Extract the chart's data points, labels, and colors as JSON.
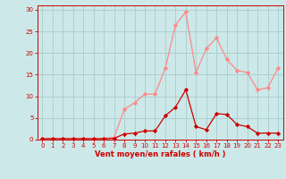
{
  "x": [
    0,
    1,
    2,
    3,
    4,
    5,
    6,
    7,
    8,
    9,
    10,
    11,
    12,
    13,
    14,
    15,
    16,
    17,
    18,
    19,
    20,
    21,
    22,
    23
  ],
  "y_rafales": [
    0.3,
    0.3,
    0.3,
    0.3,
    0.3,
    0.3,
    0.3,
    0.5,
    7.0,
    8.5,
    10.5,
    10.5,
    16.5,
    26.5,
    29.5,
    15.5,
    21.0,
    23.5,
    18.5,
    16.0,
    15.5,
    11.5,
    12.0,
    16.5
  ],
  "y_moyen": [
    0.2,
    0.2,
    0.2,
    0.2,
    0.2,
    0.2,
    0.2,
    0.3,
    1.3,
    1.5,
    2.0,
    2.0,
    5.5,
    7.5,
    11.5,
    3.0,
    2.3,
    6.0,
    5.8,
    3.5,
    3.0,
    1.5,
    1.5,
    1.5
  ],
  "color_rafales": "#ff8888",
  "color_moyen": "#cc0000",
  "background_color": "#cce8e8",
  "grid_color": "#aacccc",
  "xlabel": "Vent moyen/en rafales ( km/h )",
  "xlabel_color": "#cc0000",
  "tick_color": "#cc0000",
  "spine_color": "#cc0000",
  "ylim": [
    0,
    31
  ],
  "xlim": [
    -0.5,
    23.5
  ],
  "yticks": [
    0,
    5,
    10,
    15,
    20,
    25,
    30
  ],
  "xticks": [
    0,
    1,
    2,
    3,
    4,
    5,
    6,
    7,
    8,
    9,
    10,
    11,
    12,
    13,
    14,
    15,
    16,
    17,
    18,
    19,
    20,
    21,
    22,
    23
  ],
  "marker": "D",
  "markersize": 2.2,
  "linewidth": 0.9,
  "tick_labelsize": 5.0,
  "xlabel_fontsize": 6.0,
  "xlabel_fontweight": "bold"
}
